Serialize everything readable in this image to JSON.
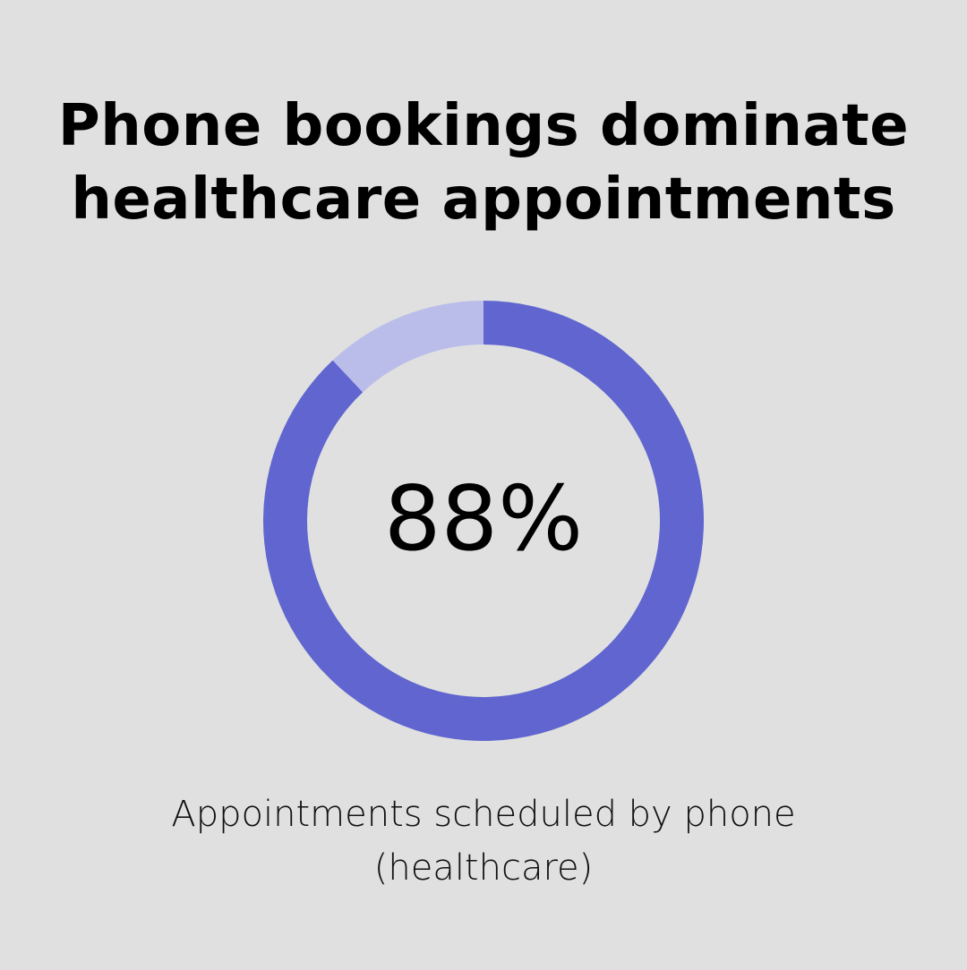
{
  "title_lines": [
    "Phone bookings dominate",
    "healthcare appointments"
  ],
  "colors": {
    "background": "#dfe0df",
    "primary": "#6065cf",
    "remainder": "#babdea"
  },
  "chart_data": {
    "type": "pie",
    "variant": "donut",
    "title": "Phone bookings dominate healthcare appointments",
    "center_label": "88%",
    "values": [
      88,
      12
    ],
    "caption_lines": [
      "Appointments scheduled by phone",
      "(healthcare)"
    ]
  }
}
